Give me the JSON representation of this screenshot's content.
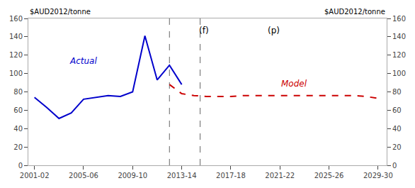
{
  "chart_data": {
    "type": "line",
    "series": [
      {
        "color": "#0000cc",
        "line_style": "solid",
        "x": [
          2001.5,
          2002.5,
          2003.5,
          2004.5,
          2005.5,
          2006.5,
          2007.5,
          2008.5,
          2009.5,
          2010.5,
          2011.5,
          2012.5,
          2013.5
        ],
        "values": [
          74,
          63,
          51,
          57,
          72,
          74,
          76,
          75,
          80,
          141,
          93,
          109,
          88
        ]
      },
      {
        "color": "#cc0000",
        "line_style": "dashed",
        "x": [
          2012.5,
          2013.5,
          2014.5,
          2015.5,
          2016.5,
          2017.5,
          2018.5,
          2019.5,
          2020.5,
          2021.5,
          2022.5,
          2023.5,
          2024.5,
          2025.5,
          2026.5,
          2027.5,
          2028.5,
          2029.5
        ],
        "values": [
          88,
          78,
          76,
          75,
          75,
          75,
          76,
          76,
          76,
          76,
          76,
          76,
          76,
          76,
          76,
          76,
          75,
          73
        ]
      }
    ],
    "vlines": [
      {
        "x": 2012.5,
        "color": "#666666",
        "line_style": "dashed"
      },
      {
        "x": 2015.0,
        "color": "#666666",
        "line_style": "dashed"
      }
    ],
    "annotations": [
      {
        "text": "(f)",
        "x": 2015.3,
        "y": 153.6,
        "color": "#000000"
      },
      {
        "text": "(p)",
        "x": 2021.0,
        "y": 153.6,
        "color": "#000000"
      },
      {
        "text": "Actual",
        "x": 2005.5,
        "y": 107,
        "color": "#0000cc"
      },
      {
        "text": "Model",
        "x": 2021.5,
        "y": 82,
        "color": "#cc0000"
      }
    ],
    "ylabel": "$AUD2012/tonne",
    "y2label": "$AUD2012/tonne",
    "xlim": [
      2001.0,
      2030.2
    ],
    "xticks": [
      {
        "value": 2001.5,
        "label": "2001-02"
      },
      {
        "value": 2005.5,
        "label": "2005-06"
      },
      {
        "value": 2009.5,
        "label": "2009-10"
      },
      {
        "value": 2013.5,
        "label": "2013-14"
      },
      {
        "value": 2017.5,
        "label": "2017-18"
      },
      {
        "value": 2021.5,
        "label": "2021-22"
      },
      {
        "value": 2025.5,
        "label": "2025-26"
      },
      {
        "value": 2029.5,
        "label": "2029-30"
      }
    ],
    "ylim": [
      0,
      160
    ],
    "yticks": [
      0,
      20,
      40,
      60,
      80,
      100,
      120,
      140,
      160
    ],
    "y2lim": [
      0,
      160
    ],
    "y2ticks": [
      0,
      20,
      40,
      60,
      80,
      100,
      120,
      140,
      160
    ],
    "grid": false
  }
}
